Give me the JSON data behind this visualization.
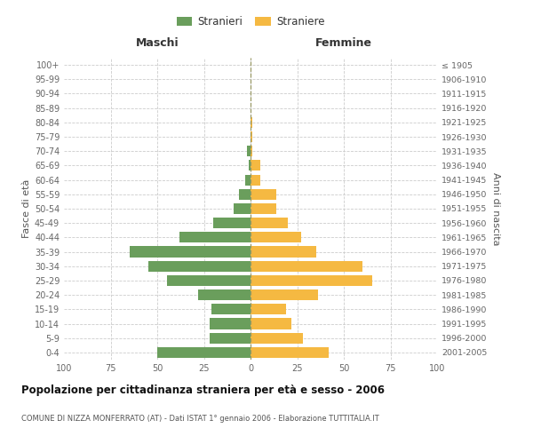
{
  "age_groups": [
    "0-4",
    "5-9",
    "10-14",
    "15-19",
    "20-24",
    "25-29",
    "30-34",
    "35-39",
    "40-44",
    "45-49",
    "50-54",
    "55-59",
    "60-64",
    "65-69",
    "70-74",
    "75-79",
    "80-84",
    "85-89",
    "90-94",
    "95-99",
    "100+"
  ],
  "birth_years": [
    "2001-2005",
    "1996-2000",
    "1991-1995",
    "1986-1990",
    "1981-1985",
    "1976-1980",
    "1971-1975",
    "1966-1970",
    "1961-1965",
    "1956-1960",
    "1951-1955",
    "1946-1950",
    "1941-1945",
    "1936-1940",
    "1931-1935",
    "1926-1930",
    "1921-1925",
    "1916-1920",
    "1911-1915",
    "1906-1910",
    "≤ 1905"
  ],
  "maschi": [
    50,
    22,
    22,
    21,
    28,
    45,
    55,
    65,
    38,
    20,
    9,
    6,
    3,
    1,
    2,
    0,
    0,
    0,
    0,
    0,
    0
  ],
  "femmine": [
    42,
    28,
    22,
    19,
    36,
    65,
    60,
    35,
    27,
    20,
    14,
    14,
    5,
    5,
    1,
    1,
    1,
    0,
    0,
    0,
    0
  ],
  "maschi_color": "#6a9e5c",
  "femmine_color": "#f5b942",
  "title": "Popolazione per cittadinanza straniera per età e sesso - 2006",
  "subtitle": "COMUNE DI NIZZA MONFERRATO (AT) - Dati ISTAT 1° gennaio 2006 - Elaborazione TUTTITALIA.IT",
  "ylabel_left": "Fasce di età",
  "ylabel_right": "Anni di nascita",
  "xlabel_left": "Maschi",
  "xlabel_right": "Femmine",
  "legend_maschi": "Stranieri",
  "legend_femmine": "Straniere",
  "xlim": 100,
  "background_color": "#ffffff",
  "grid_color": "#cccccc"
}
